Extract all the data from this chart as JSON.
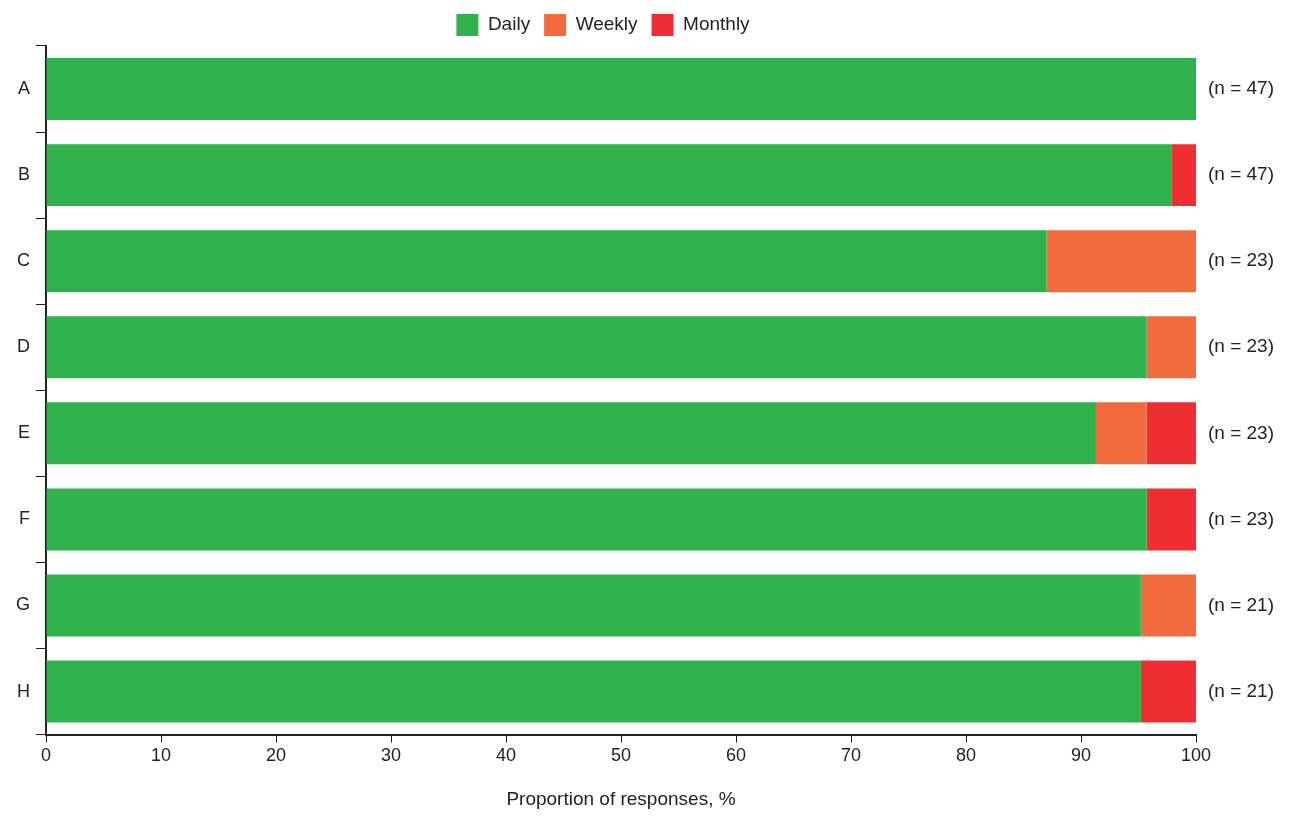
{
  "chart_data": {
    "type": "bar",
    "orientation": "horizontal",
    "stacked": true,
    "xlabel": "Proportion of responses, %",
    "categories": [
      "A",
      "B",
      "C",
      "D",
      "E",
      "F",
      "G",
      "H"
    ],
    "series": [
      {
        "name": "Daily",
        "color": "#2fb24c",
        "values": [
          100,
          97.9,
          87.0,
          95.7,
          91.3,
          95.7,
          95.2,
          95.2
        ]
      },
      {
        "name": "Weekly",
        "color": "#f26b3c",
        "values": [
          0,
          0,
          13.0,
          4.3,
          4.4,
          0,
          4.8,
          0
        ]
      },
      {
        "name": "Monthly",
        "color": "#ee2e31",
        "values": [
          0,
          2.1,
          0,
          0,
          4.3,
          4.3,
          0,
          4.8
        ]
      }
    ],
    "xlim": [
      0,
      100
    ],
    "xticks": [
      0,
      10,
      20,
      30,
      40,
      50,
      60,
      70,
      80,
      90,
      100
    ],
    "grid": false,
    "legend": "top",
    "annotations": [
      "(n = 47)",
      "(n = 47)",
      "(n = 23)",
      "(n = 23)",
      "(n = 23)",
      "(n = 23)",
      "(n = 21)",
      "(n = 21)"
    ]
  }
}
